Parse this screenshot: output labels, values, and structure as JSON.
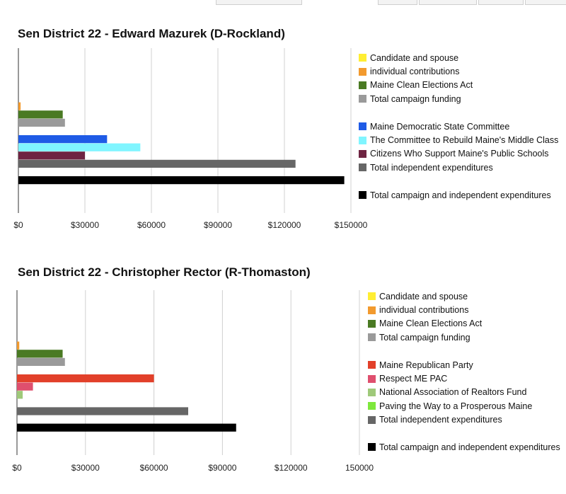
{
  "chart_data": [
    {
      "type": "bar",
      "orientation": "horizontal",
      "title": "Sen District 22 - Edward Mazurek (D-Rockland)",
      "xlim": [
        0,
        150000
      ],
      "ticks": [
        "$0",
        "$30000",
        "$60000",
        "$90000",
        "$120000",
        "$150000"
      ],
      "tick_values": [
        0,
        30000,
        60000,
        90000,
        120000,
        150000
      ],
      "grid": true,
      "legend_position": "right",
      "series": [
        {
          "name": "Candidate and spouse",
          "color": "#ffee33",
          "value": 0,
          "group": 0
        },
        {
          "name": "individual contributions",
          "color": "#f29a2e",
          "value": 1000,
          "group": 0
        },
        {
          "name": "Maine Clean Elections Act",
          "color": "#4a7a23",
          "value": 20000,
          "group": 0
        },
        {
          "name": "Total campaign funding",
          "color": "#9a9a9a",
          "value": 21000,
          "group": 0
        },
        {
          "name": "Maine Democratic State Committee",
          "color": "#1f5be6",
          "value": 40000,
          "group": 1
        },
        {
          "name": "The Committee to Rebuild Maine's Middle Class",
          "color": "#80f5ff",
          "value": 55000,
          "group": 1
        },
        {
          "name": "Citizens Who Support Maine's Public Schools",
          "color": "#6e2442",
          "value": 30000,
          "group": 1
        },
        {
          "name": "Total independent expenditures",
          "color": "#666666",
          "value": 125000,
          "group": 1
        },
        {
          "name": "Total campaign and independent expenditures",
          "color": "#000000",
          "value": 147000,
          "group": 2
        }
      ]
    },
    {
      "type": "bar",
      "orientation": "horizontal",
      "title": "Sen District 22 - Christopher Rector (R-Thomaston)",
      "xlim": [
        0,
        150000
      ],
      "ticks": [
        "$0",
        "$30000",
        "$60000",
        "$90000",
        "$120000",
        "150000"
      ],
      "tick_values": [
        0,
        30000,
        60000,
        90000,
        120000,
        150000
      ],
      "grid": true,
      "legend_position": "right",
      "series": [
        {
          "name": "Candidate and spouse",
          "color": "#ffee33",
          "value": 0,
          "group": 0
        },
        {
          "name": "individual contributions",
          "color": "#f29a2e",
          "value": 1000,
          "group": 0
        },
        {
          "name": "Maine Clean Elections Act",
          "color": "#4a7a23",
          "value": 20000,
          "group": 0
        },
        {
          "name": "Total campaign funding",
          "color": "#9a9a9a",
          "value": 21000,
          "group": 0
        },
        {
          "name": "Maine Republican Party",
          "color": "#e2402a",
          "value": 60000,
          "group": 1
        },
        {
          "name": "Respect ME PAC",
          "color": "#df4f6e",
          "value": 7000,
          "group": 1
        },
        {
          "name": "National Association of Realtors Fund",
          "color": "#9fc97a",
          "value": 2500,
          "group": 1
        },
        {
          "name": "Paving the Way to a Prosperous Maine",
          "color": "#7ee83c",
          "value": 0,
          "group": 1
        },
        {
          "name": "Total independent expenditures",
          "color": "#666666",
          "value": 75000,
          "group": 1
        },
        {
          "name": "Total campaign and independent expenditures",
          "color": "#000000",
          "value": 96000,
          "group": 2
        }
      ]
    }
  ]
}
